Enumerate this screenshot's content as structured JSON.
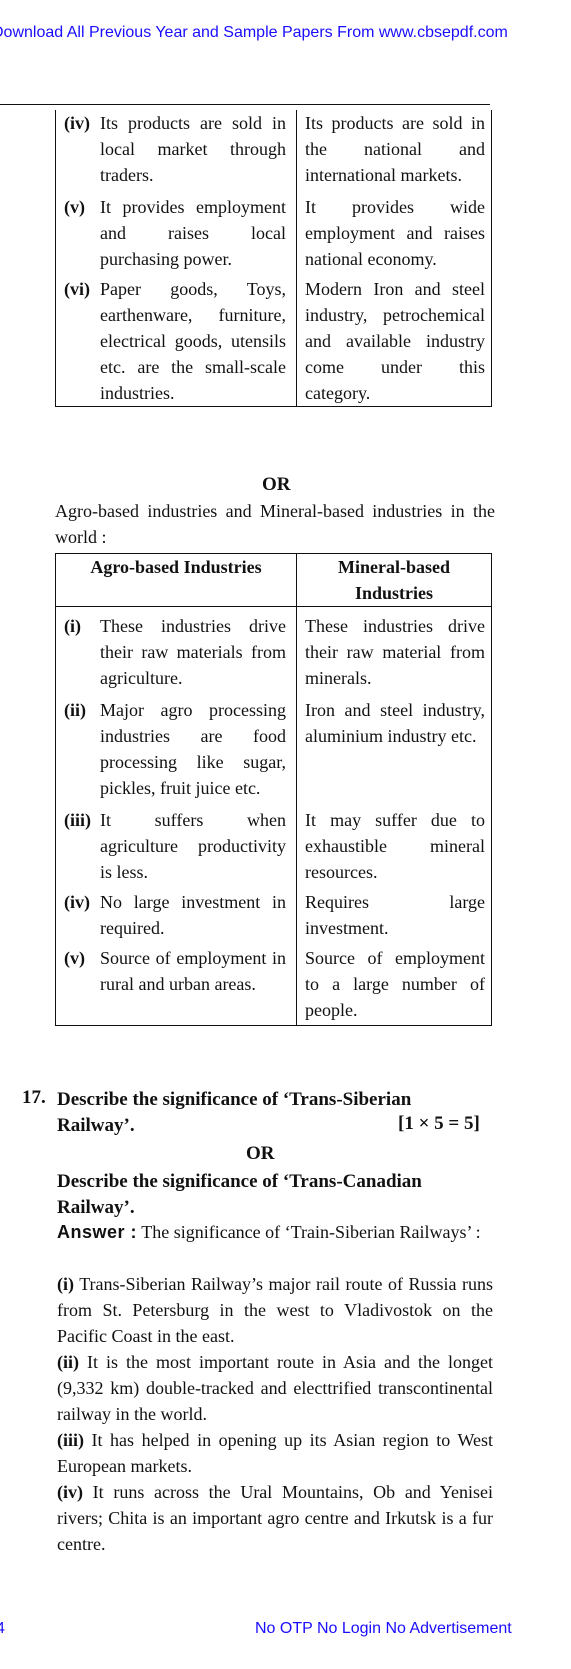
{
  "header": {
    "banner": "Download All Previous Year and Sample Papers From www.cbsepdf.com"
  },
  "table1": {
    "rows": [
      {
        "num": "(iv)",
        "left": "Its products are sold in local market through traders.",
        "right": "Its products are sold in the national and international markets."
      },
      {
        "num": "(v)",
        "left": "It provides employment and raises local purchasing power.",
        "right": "It provides wide employment and raises national economy."
      },
      {
        "num": "(vi)",
        "left": "Paper goods, Toys, earthenware, furniture, electrical goods, utensils etc. are the small-scale industries.",
        "right": "Modern Iron and steel industry, petrochemical and available industry come under this category."
      }
    ]
  },
  "or1": "OR",
  "intro": "Agro-based industries and Mineral-based industries in the world :",
  "table2": {
    "headers": [
      "Agro-based Industries",
      "Mineral-based Industries"
    ],
    "rows": [
      {
        "num": "(i)",
        "left": "These industries drive their raw materials from agriculture.",
        "right": "These industries drive their raw material from minerals."
      },
      {
        "num": "(ii)",
        "left": "Major agro processing industries are food processing like sugar, pickles, fruit juice etc.",
        "right": "Iron and steel industry, aluminium industry etc."
      },
      {
        "num": "(iii)",
        "left": "It suffers when agriculture productivity is less.",
        "right": "It may suffer due to exhaustible mineral resources."
      },
      {
        "num": "(iv)",
        "left": "No large investment in required.",
        "right": "Requires large investment."
      },
      {
        "num": "(v)",
        "left": "Source of employment in rural and urban areas.",
        "right": "Source of employment to a large number of people."
      }
    ]
  },
  "question": {
    "number": "17.",
    "text": "Describe the significance of ‘Trans-Siberian Railway’.",
    "marks": "[1 × 5 = 5]",
    "or": "OR",
    "alt": "Describe the significance of ‘Trans-Canadian Railway’."
  },
  "answer": {
    "label": "Answer :",
    "intro": "The significance of ‘Train-Siberian Railways’ :",
    "points": [
      {
        "num": "(i)",
        "text": "Trans-Siberian Railway’s major rail route of Russia runs from St. Petersburg in the west to Vladivostok on the Pacific Coast in the east."
      },
      {
        "num": "(ii)",
        "text": "It is the most important route in Asia and the longet (9,332 km) double-tracked and electtrified transcontinental railway in the world."
      },
      {
        "num": "(iii)",
        "text": "It has helped in opening up its Asian region to West European markets."
      },
      {
        "num": "(iv)",
        "text": "It runs across the Ural Mountains, Ob and Yenisei rivers; Chita is an important agro centre and Irkutsk is a fur centre."
      }
    ]
  },
  "footer": {
    "page": "4",
    "text": "No OTP No Login No Advertisement"
  }
}
